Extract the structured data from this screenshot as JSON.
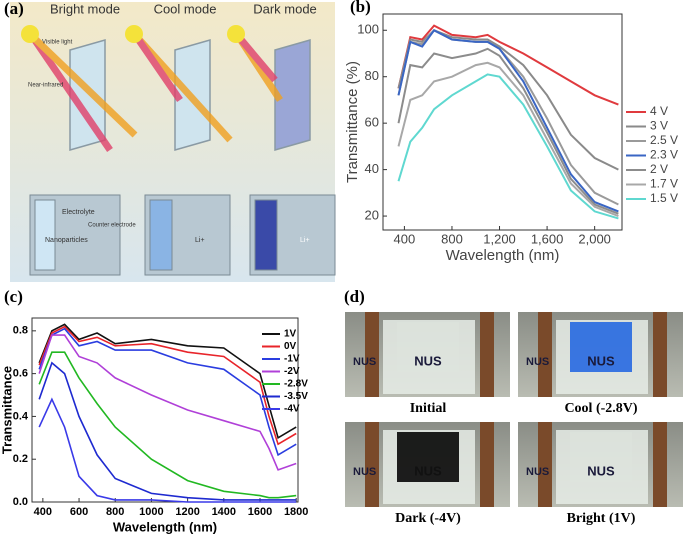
{
  "illustration": {
    "panel_label": "(a)",
    "modes": [
      "Bright mode",
      "Cool mode",
      "Dark mode"
    ],
    "visible": "Visible light",
    "nir": "Near-infrared",
    "electrolyte": "Electrolyte",
    "counter": "Counter electrode",
    "nano": "Nanoparticles",
    "li": "Li+"
  },
  "photos": {
    "panel_label": "(d)",
    "logo": "NUS",
    "captions": [
      "Initial",
      "Cool (-2.8V)",
      "Dark (-4V)",
      "Bright (1V)"
    ]
  },
  "chart_data": [
    {
      "type": "line",
      "panel_label": "(b)",
      "xlabel": "Wavelength (nm)",
      "ylabel": "Transmittance (%)",
      "x": [
        350,
        450,
        550,
        650,
        800,
        1000,
        1100,
        1200,
        1400,
        1600,
        1800,
        2000,
        2200
      ],
      "xlim": [
        220,
        2230
      ],
      "ylim": [
        14,
        107
      ],
      "xticks": [
        400,
        800,
        {
          "value": 1200,
          "label": "1,200"
        },
        {
          "value": 1600,
          "label": "1,600"
        },
        {
          "value": 2000,
          "label": "2,000"
        }
      ],
      "yticks": [
        20,
        40,
        60,
        80,
        100
      ],
      "series": [
        {
          "name": "4 V",
          "color": "#e03a3e",
          "values": [
            75,
            97,
            96,
            102,
            98,
            97,
            98,
            95,
            90,
            84,
            78,
            72,
            68
          ]
        },
        {
          "name": "3 V",
          "color": "#8a8a8a",
          "values": [
            75,
            96,
            95,
            100,
            97,
            96,
            96,
            93,
            85,
            72,
            55,
            45,
            40
          ]
        },
        {
          "name": "2.5 V",
          "color": "#9a9a9a",
          "values": [
            72,
            95,
            94,
            100,
            96,
            95,
            95,
            92,
            80,
            62,
            42,
            30,
            25
          ]
        },
        {
          "name": "2.3 V",
          "color": "#3a66c4",
          "values": [
            72,
            95,
            93,
            100,
            96,
            95,
            95,
            92,
            78,
            58,
            38,
            26,
            22
          ]
        },
        {
          "name": "2 V",
          "color": "#8c8c8c",
          "values": [
            60,
            85,
            84,
            90,
            88,
            90,
            92,
            89,
            75,
            56,
            36,
            25,
            21
          ]
        },
        {
          "name": "1.7 V",
          "color": "#a8a8a8",
          "values": [
            50,
            70,
            72,
            78,
            80,
            85,
            86,
            84,
            72,
            53,
            34,
            24,
            20
          ]
        },
        {
          "name": "1.5 V",
          "color": "#5fd8d0",
          "values": [
            35,
            52,
            58,
            66,
            72,
            78,
            81,
            80,
            68,
            50,
            31,
            22,
            19
          ]
        }
      ]
    },
    {
      "type": "line",
      "panel_label": "(c)",
      "xlabel": "Wavelength (nm)",
      "ylabel": "Transmittance",
      "x": [
        380,
        450,
        520,
        600,
        700,
        800,
        1000,
        1200,
        1400,
        1600,
        1650,
        1700,
        1800
      ],
      "xlim": [
        340,
        1810
      ],
      "ylim": [
        0,
        0.86
      ],
      "xticks": [
        400,
        600,
        800,
        1000,
        1200,
        1400,
        1600,
        1800
      ],
      "yticks": [
        {
          "value": 0,
          "label": "0.0"
        },
        0.2,
        0.4,
        0.6,
        0.8
      ],
      "series": [
        {
          "name": "1V",
          "color": "#111111",
          "values": [
            0.65,
            0.8,
            0.83,
            0.76,
            0.79,
            0.74,
            0.76,
            0.73,
            0.72,
            0.6,
            0.45,
            0.3,
            0.35
          ]
        },
        {
          "name": "0V",
          "color": "#e8242a",
          "values": [
            0.64,
            0.79,
            0.82,
            0.75,
            0.77,
            0.73,
            0.74,
            0.7,
            0.68,
            0.56,
            0.4,
            0.27,
            0.32
          ]
        },
        {
          "name": "-1V",
          "color": "#2a3de0",
          "values": [
            0.62,
            0.78,
            0.81,
            0.73,
            0.75,
            0.71,
            0.71,
            0.65,
            0.62,
            0.5,
            0.35,
            0.22,
            0.27
          ]
        },
        {
          "name": "-2V",
          "color": "#b040d8",
          "values": [
            0.6,
            0.78,
            0.78,
            0.68,
            0.65,
            0.58,
            0.5,
            0.43,
            0.38,
            0.33,
            0.25,
            0.15,
            0.18
          ]
        },
        {
          "name": "-2.8V",
          "color": "#22b822",
          "values": [
            0.55,
            0.7,
            0.7,
            0.58,
            0.46,
            0.35,
            0.2,
            0.1,
            0.05,
            0.03,
            0.02,
            0.02,
            0.03
          ]
        },
        {
          "name": "-3.5V",
          "color": "#1e2ad0",
          "values": [
            0.48,
            0.65,
            0.6,
            0.4,
            0.22,
            0.11,
            0.04,
            0.02,
            0.01,
            0.01,
            0.01,
            0.01,
            0.01
          ]
        },
        {
          "name": "-4V",
          "color": "#3a3ae8",
          "values": [
            0.35,
            0.48,
            0.35,
            0.12,
            0.03,
            0.01,
            0.01,
            0,
            0,
            0,
            0,
            0,
            0
          ]
        }
      ]
    }
  ]
}
